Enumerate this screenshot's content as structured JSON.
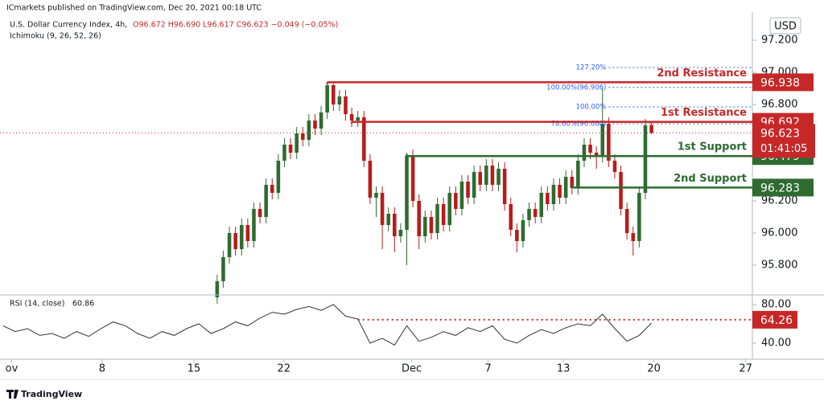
{
  "chart_data": {
    "type": "candlestick",
    "publisher": "ICmarkets published on TradingView.com, Dec 20, 2021 00:18 UTC",
    "title": "U.S. Dollar Currency Index, 4h,",
    "ohlc_text": "O96.672  H96.690  L96.617  C96.623  −0.049 (−0.05%)",
    "indicator": "Ichimoku (9, 26, 52, 26)",
    "currency": "USD",
    "footer": "TradingView",
    "up_color": "#2e6b30",
    "down_color": "#b71c1c",
    "ylim": [
      95.615,
      97.375
    ],
    "yticks": [
      {
        "value": 97.2,
        "label": "97.200"
      },
      {
        "value": 97.0,
        "label": "97.000"
      },
      {
        "value": 96.8,
        "label": "96.800"
      },
      {
        "value": 96.2,
        "label": "96.200"
      },
      {
        "value": 96.0,
        "label": "96.000"
      },
      {
        "value": 95.8,
        "label": "95.800"
      }
    ],
    "xlim": [
      -35.5,
      87.5
    ],
    "xticks": [
      {
        "value": -33.6,
        "label": "ov"
      },
      {
        "value": -18.8,
        "label": "8"
      },
      {
        "value": -3.8,
        "label": "15"
      },
      {
        "value": 10.9,
        "label": "22"
      },
      {
        "value": 31.8,
        "label": "Dec"
      },
      {
        "value": 44.3,
        "label": "7"
      },
      {
        "value": 56.6,
        "label": "13"
      },
      {
        "value": 71.4,
        "label": "20"
      },
      {
        "value": 86.4,
        "label": "27"
      }
    ],
    "open": [
      95.6,
      95.7,
      95.85,
      96.0,
      95.9,
      96.05,
      95.95,
      96.15,
      96.1,
      96.3,
      96.25,
      96.45,
      96.55,
      96.5,
      96.62,
      96.58,
      96.7,
      96.65,
      96.75,
      96.92,
      96.8,
      96.85,
      96.74,
      96.7,
      96.72,
      96.45,
      96.22,
      96.25,
      96.05,
      96.12,
      95.98,
      96.02,
      96.48,
      96.2,
      95.98,
      96.1,
      96.0,
      96.18,
      96.05,
      96.25,
      96.15,
      96.32,
      96.22,
      96.38,
      96.3,
      96.42,
      96.3,
      96.4,
      96.18,
      96.02,
      95.95,
      96.08,
      96.15,
      96.1,
      96.25,
      96.18,
      96.3,
      96.22,
      96.35,
      96.28,
      96.45,
      96.55,
      96.5,
      96.48,
      96.68,
      96.45,
      96.38,
      96.15,
      96.0,
      95.95,
      96.25,
      96.672
    ],
    "high": [
      95.74,
      95.89,
      96.04,
      96.04,
      96.09,
      96.09,
      96.19,
      96.19,
      96.34,
      96.34,
      96.49,
      96.59,
      96.59,
      96.66,
      96.66,
      96.74,
      96.74,
      96.79,
      96.94,
      96.93,
      96.89,
      96.89,
      96.78,
      96.76,
      96.76,
      96.49,
      96.29,
      96.29,
      96.16,
      96.16,
      96.06,
      96.5,
      96.52,
      96.24,
      96.14,
      96.14,
      96.22,
      96.22,
      96.29,
      96.29,
      96.36,
      96.36,
      96.42,
      96.42,
      96.46,
      96.46,
      96.44,
      96.44,
      96.22,
      96.06,
      96.12,
      96.19,
      96.19,
      96.29,
      96.29,
      96.34,
      96.34,
      96.39,
      96.39,
      96.49,
      96.59,
      96.59,
      96.54,
      96.906,
      96.72,
      96.49,
      96.42,
      96.19,
      96.04,
      96.29,
      96.71,
      96.69
    ],
    "low": [
      95.56,
      95.66,
      95.81,
      95.86,
      95.86,
      95.91,
      95.91,
      96.06,
      96.06,
      96.21,
      96.21,
      96.41,
      96.46,
      96.46,
      96.54,
      96.54,
      96.61,
      96.61,
      96.71,
      96.76,
      96.76,
      96.7,
      96.66,
      96.66,
      96.41,
      96.18,
      96.1,
      95.9,
      96.01,
      95.88,
      95.94,
      95.8,
      96.16,
      95.9,
      95.94,
      95.96,
      95.96,
      96.01,
      96.01,
      96.11,
      96.11,
      96.18,
      96.18,
      96.26,
      96.26,
      96.26,
      96.26,
      96.14,
      95.98,
      95.88,
      95.91,
      96.04,
      96.06,
      96.06,
      96.14,
      96.14,
      96.18,
      96.18,
      96.24,
      96.24,
      96.41,
      96.46,
      96.4,
      96.44,
      96.41,
      96.34,
      96.11,
      95.96,
      95.86,
      95.91,
      96.21,
      96.617
    ],
    "close": [
      95.7,
      95.85,
      96.0,
      95.9,
      96.05,
      95.95,
      96.15,
      96.1,
      96.3,
      96.25,
      96.45,
      96.55,
      96.5,
      96.62,
      96.58,
      96.7,
      96.65,
      96.75,
      96.92,
      96.8,
      96.85,
      96.74,
      96.7,
      96.72,
      96.45,
      96.22,
      96.25,
      96.05,
      96.12,
      95.98,
      96.02,
      96.48,
      96.2,
      95.98,
      96.1,
      96.0,
      96.18,
      96.05,
      96.25,
      96.15,
      96.32,
      96.22,
      96.38,
      96.3,
      96.42,
      96.3,
      96.4,
      96.18,
      96.02,
      95.95,
      96.08,
      96.15,
      96.1,
      96.25,
      96.18,
      96.3,
      96.22,
      96.35,
      96.28,
      96.45,
      96.55,
      96.5,
      96.48,
      96.68,
      96.45,
      96.38,
      96.15,
      96.0,
      95.95,
      96.25,
      96.67,
      96.623
    ],
    "levels": [
      {
        "name": "2nd Resistance",
        "value": 96.938,
        "start": 18,
        "color": "#c62828"
      },
      {
        "name": "1st Resistance",
        "value": 96.692,
        "start": 22,
        "color": "#c62828"
      },
      {
        "name": "1st Support",
        "value": 96.479,
        "start": 31,
        "color": "#2e6b30"
      },
      {
        "name": "2nd Support",
        "value": 96.283,
        "start": 58,
        "color": "#2e6b30"
      }
    ],
    "fib_color": "#2962ff",
    "fibs": [
      {
        "label": "127.20%",
        "value": 97.03,
        "start": 64
      },
      {
        "label": "100.00%(96.906)",
        "value": 96.906,
        "start": 64
      },
      {
        "label": "100.00%",
        "value": 96.785,
        "start": 64
      },
      {
        "label": "78.60%(96.680)",
        "value": 96.68,
        "start": 64
      }
    ],
    "last_price": {
      "value": 96.623,
      "countdown": "01:41:05",
      "color": "#c62828"
    },
    "rsi": {
      "title": "RSI (14, close)",
      "current": 60.86,
      "color": "#333333",
      "ylim": [
        25,
        87.5
      ],
      "yticks": [
        {
          "value": 80,
          "label": "80.00"
        },
        {
          "value": 40,
          "label": "40.00"
        }
      ],
      "level": 64.26,
      "level_start": 23,
      "level_color": "#c62828",
      "x": [
        -35,
        -33,
        -31,
        -29,
        -27,
        -25,
        -23,
        -21,
        -19,
        -17,
        -15,
        -13,
        -11,
        -9,
        -7,
        -5,
        -3,
        -1,
        1,
        3,
        5,
        7,
        9,
        11,
        13,
        15,
        17,
        19,
        21,
        23,
        25,
        27,
        29,
        31,
        33,
        35,
        37,
        39,
        41,
        43,
        45,
        47,
        49,
        51,
        53,
        55,
        57,
        59,
        61,
        63,
        65,
        67,
        69,
        71
      ],
      "values": [
        58,
        52,
        55,
        48,
        50,
        45,
        52,
        47,
        55,
        62,
        58,
        50,
        45,
        52,
        48,
        55,
        60,
        50,
        55,
        62,
        58,
        66,
        72,
        70,
        75,
        78,
        74,
        80,
        68,
        65,
        40,
        45,
        38,
        58,
        42,
        46,
        52,
        48,
        56,
        52,
        58,
        44,
        40,
        48,
        54,
        50,
        56,
        60,
        58,
        70,
        55,
        42,
        48,
        60.86
      ]
    }
  }
}
